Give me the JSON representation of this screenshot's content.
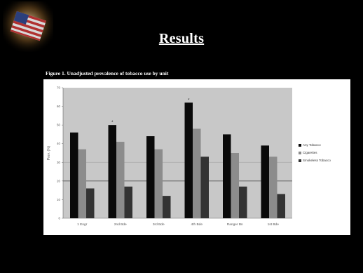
{
  "slide": {
    "title": "Results",
    "figure_caption": "Figure 1. Unadjusted prevalence of tobacco use by unit"
  },
  "chart_data": {
    "type": "bar",
    "title": "",
    "xlabel": "",
    "ylabel": "Prev. (%)",
    "ylim": [
      0,
      70
    ],
    "yticks": [
      0,
      10,
      20,
      30,
      40,
      50,
      60,
      70
    ],
    "grid": false,
    "legend_position": "right",
    "categories": [
      "1 Engr",
      "2nd Bde",
      "3rd Bde",
      "4th Bde",
      "Ranger Bn",
      "1st Bde"
    ],
    "series": [
      {
        "name": "Any Tobacco",
        "color": "#0a0a0a",
        "values": [
          46,
          50,
          44,
          62,
          45,
          39
        ]
      },
      {
        "name": "Cigarettes",
        "color": "#8c8c8c",
        "values": [
          37,
          41,
          37,
          48,
          35,
          33
        ]
      },
      {
        "name": "Smokeless Tobacco",
        "color": "#333333",
        "values": [
          16,
          17,
          12,
          33,
          17,
          13
        ]
      }
    ],
    "annotations": [
      {
        "category": "2nd Bde",
        "series": "Any Tobacco",
        "text": "*"
      },
      {
        "category": "4th Bde",
        "series": "Any Tobacco",
        "text": "*"
      }
    ],
    "reference_lines": [
      {
        "y": 20,
        "color": "#444444"
      },
      {
        "y": 30,
        "color": "#a8a8a8"
      }
    ],
    "plot_background": "#c8c8c8"
  }
}
